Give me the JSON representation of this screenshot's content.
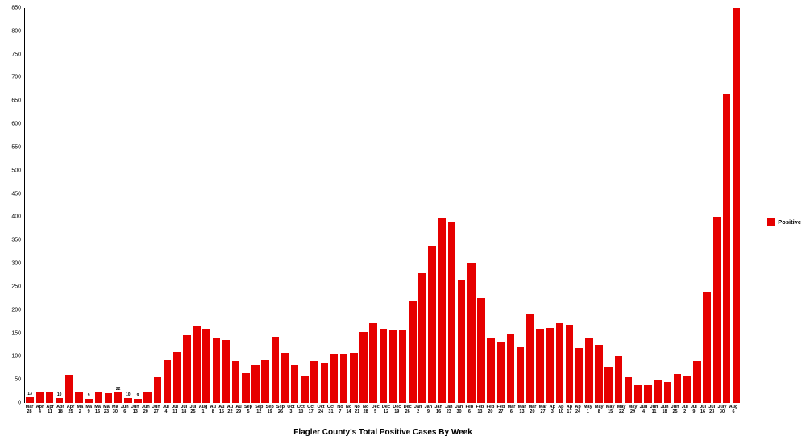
{
  "chart": {
    "type": "bar",
    "title": "Flagler County's Total Positive Cases By Week",
    "background_color": "#ffffff",
    "bar_color": "#e60000",
    "legend": {
      "label": "Positive",
      "swatch_color": "#e60000"
    },
    "y_axis": {
      "min": 0,
      "max": 850,
      "tick_step": 50,
      "ticks": [
        0,
        50,
        100,
        150,
        200,
        250,
        300,
        350,
        400,
        450,
        500,
        550,
        600,
        650,
        700,
        750,
        800,
        850
      ]
    },
    "show_value_labels_on_bars": [
      "Mar 28",
      "Apr 18",
      "Ma 9",
      "Ma 30",
      "Jun 6",
      "Jun 13"
    ],
    "bars": [
      {
        "label": "Mar 28",
        "value": 13
      },
      {
        "label": "Apr 4",
        "value": 22
      },
      {
        "label": "Apr 11",
        "value": 23
      },
      {
        "label": "Apr 18",
        "value": 10
      },
      {
        "label": "Apr 25",
        "value": 60
      },
      {
        "label": "Ma 2",
        "value": 25
      },
      {
        "label": "Ma 9",
        "value": 9
      },
      {
        "label": "Ma 16",
        "value": 22
      },
      {
        "label": "Ma 23",
        "value": 20
      },
      {
        "label": "Ma 30",
        "value": 22
      },
      {
        "label": "Jun 6",
        "value": 10
      },
      {
        "label": "Jun 13",
        "value": 9
      },
      {
        "label": "Jun 20",
        "value": 22
      },
      {
        "label": "Jun 27",
        "value": 55
      },
      {
        "label": "Jul 4",
        "value": 92
      },
      {
        "label": "Jul 11",
        "value": 110
      },
      {
        "label": "Jul 18",
        "value": 145
      },
      {
        "label": "Jul 25",
        "value": 165
      },
      {
        "label": "Aug 1",
        "value": 160
      },
      {
        "label": "Au 8",
        "value": 138
      },
      {
        "label": "Au 15",
        "value": 135
      },
      {
        "label": "Au 22",
        "value": 90
      },
      {
        "label": "Au 29",
        "value": 65
      },
      {
        "label": "Sep 5",
        "value": 82
      },
      {
        "label": "Sep 12",
        "value": 92
      },
      {
        "label": "Sep 19",
        "value": 142
      },
      {
        "label": "Sep 26",
        "value": 108
      },
      {
        "label": "Oct 3",
        "value": 82
      },
      {
        "label": "Oct 10",
        "value": 58
      },
      {
        "label": "Oct 17",
        "value": 90
      },
      {
        "label": "Oct 24",
        "value": 87
      },
      {
        "label": "Oct 31",
        "value": 105
      },
      {
        "label": "No 7",
        "value": 105
      },
      {
        "label": "No 14",
        "value": 108
      },
      {
        "label": "No 21",
        "value": 152
      },
      {
        "label": "No 28",
        "value": 172
      },
      {
        "label": "Dec 5",
        "value": 160
      },
      {
        "label": "Dec 12",
        "value": 158
      },
      {
        "label": "Dec 19",
        "value": 158
      },
      {
        "label": "Dec 26",
        "value": 220
      },
      {
        "label": "Jan 2",
        "value": 280
      },
      {
        "label": "Jan 9",
        "value": 338
      },
      {
        "label": "Jan 16",
        "value": 398
      },
      {
        "label": "Jan 23",
        "value": 390
      },
      {
        "label": "Jan 30",
        "value": 265
      },
      {
        "label": "Feb 6",
        "value": 302
      },
      {
        "label": "Feb 13",
        "value": 225
      },
      {
        "label": "Feb 20",
        "value": 138
      },
      {
        "label": "Feb 27",
        "value": 132
      },
      {
        "label": "Mar 6",
        "value": 148
      },
      {
        "label": "Mar 13",
        "value": 122
      },
      {
        "label": "Mar 20",
        "value": 190
      },
      {
        "label": "Mar 27",
        "value": 160
      },
      {
        "label": "Ap 3",
        "value": 162
      },
      {
        "label": "Ap 10",
        "value": 172
      },
      {
        "label": "Ap 17",
        "value": 168
      },
      {
        "label": "Ap 24",
        "value": 118
      },
      {
        "label": "May 1",
        "value": 138
      },
      {
        "label": "May 8",
        "value": 125
      },
      {
        "label": "May 15",
        "value": 78
      },
      {
        "label": "May 22",
        "value": 100
      },
      {
        "label": "May 29",
        "value": 55
      },
      {
        "label": "Jun 4",
        "value": 38
      },
      {
        "label": "Jun 11",
        "value": 38
      },
      {
        "label": "Jun 18",
        "value": 50
      },
      {
        "label": "Jun 25",
        "value": 45
      },
      {
        "label": "Jul 2",
        "value": 62
      },
      {
        "label": "Jul 9",
        "value": 58
      },
      {
        "label": "Jul 16",
        "value": 90
      },
      {
        "label": "Jul 23",
        "value": 240
      },
      {
        "label": "July 30",
        "value": 400
      },
      {
        "label": "Aug 6",
        "value": 665
      },
      {
        "label": "",
        "value": 850
      }
    ]
  }
}
